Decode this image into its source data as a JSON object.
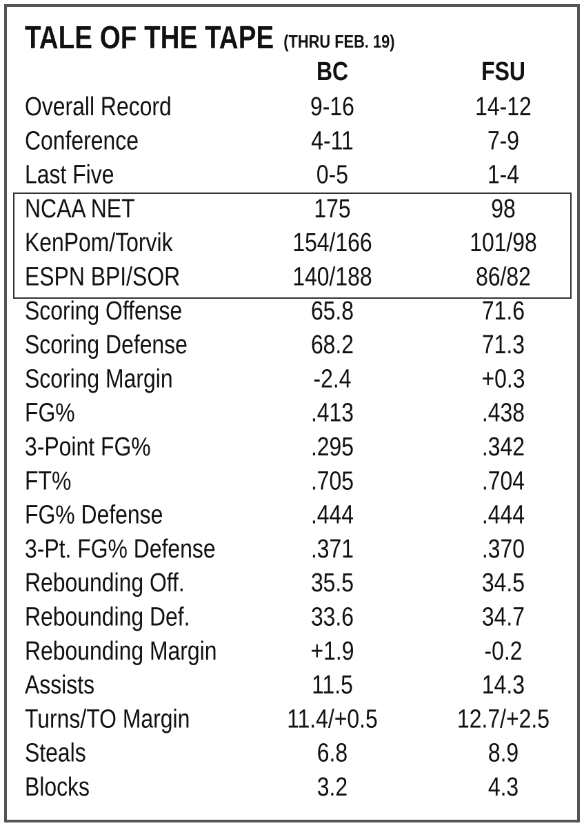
{
  "header": {
    "title": "TALE OF THE TAPE",
    "subtitle": "(THRU FEB. 19)"
  },
  "table": {
    "columns": [
      "BC",
      "FSU"
    ],
    "rows": [
      [
        "Overall Record",
        "9-16",
        "14-12"
      ],
      [
        "Conference",
        "4-11",
        "7-9"
      ],
      [
        "Last Five",
        "0-5",
        "1-4"
      ],
      [
        "NCAA NET",
        "175",
        "98"
      ],
      [
        "KenPom/Torvik",
        "154/166",
        "101/98"
      ],
      [
        "ESPN BPI/SOR",
        "140/188",
        "86/82"
      ],
      [
        "Scoring Offense",
        "65.8",
        "71.6"
      ],
      [
        "Scoring Defense",
        "68.2",
        "71.3"
      ],
      [
        "Scoring Margin",
        "-2.4",
        "+0.3"
      ],
      [
        "FG%",
        ".413",
        ".438"
      ],
      [
        "3-Point FG%",
        ".295",
        ".342"
      ],
      [
        "FT%",
        ".705",
        ".704"
      ],
      [
        "FG% Defense",
        ".444",
        ".444"
      ],
      [
        "3-Pt. FG% Defense",
        ".371",
        ".370"
      ],
      [
        "Rebounding Off.",
        "35.5",
        "34.5"
      ],
      [
        "Rebounding Def.",
        "33.6",
        "34.7"
      ],
      [
        "Rebounding Margin",
        "+1.9",
        "-0.2"
      ],
      [
        "Assists",
        "11.5",
        "14.3"
      ],
      [
        "Turns/TO Margin",
        "11.4/+0.5",
        "12.7/+2.5"
      ],
      [
        "Steals",
        "6.8",
        "8.9"
      ],
      [
        "Blocks",
        "3.2",
        "4.3"
      ]
    ]
  }
}
